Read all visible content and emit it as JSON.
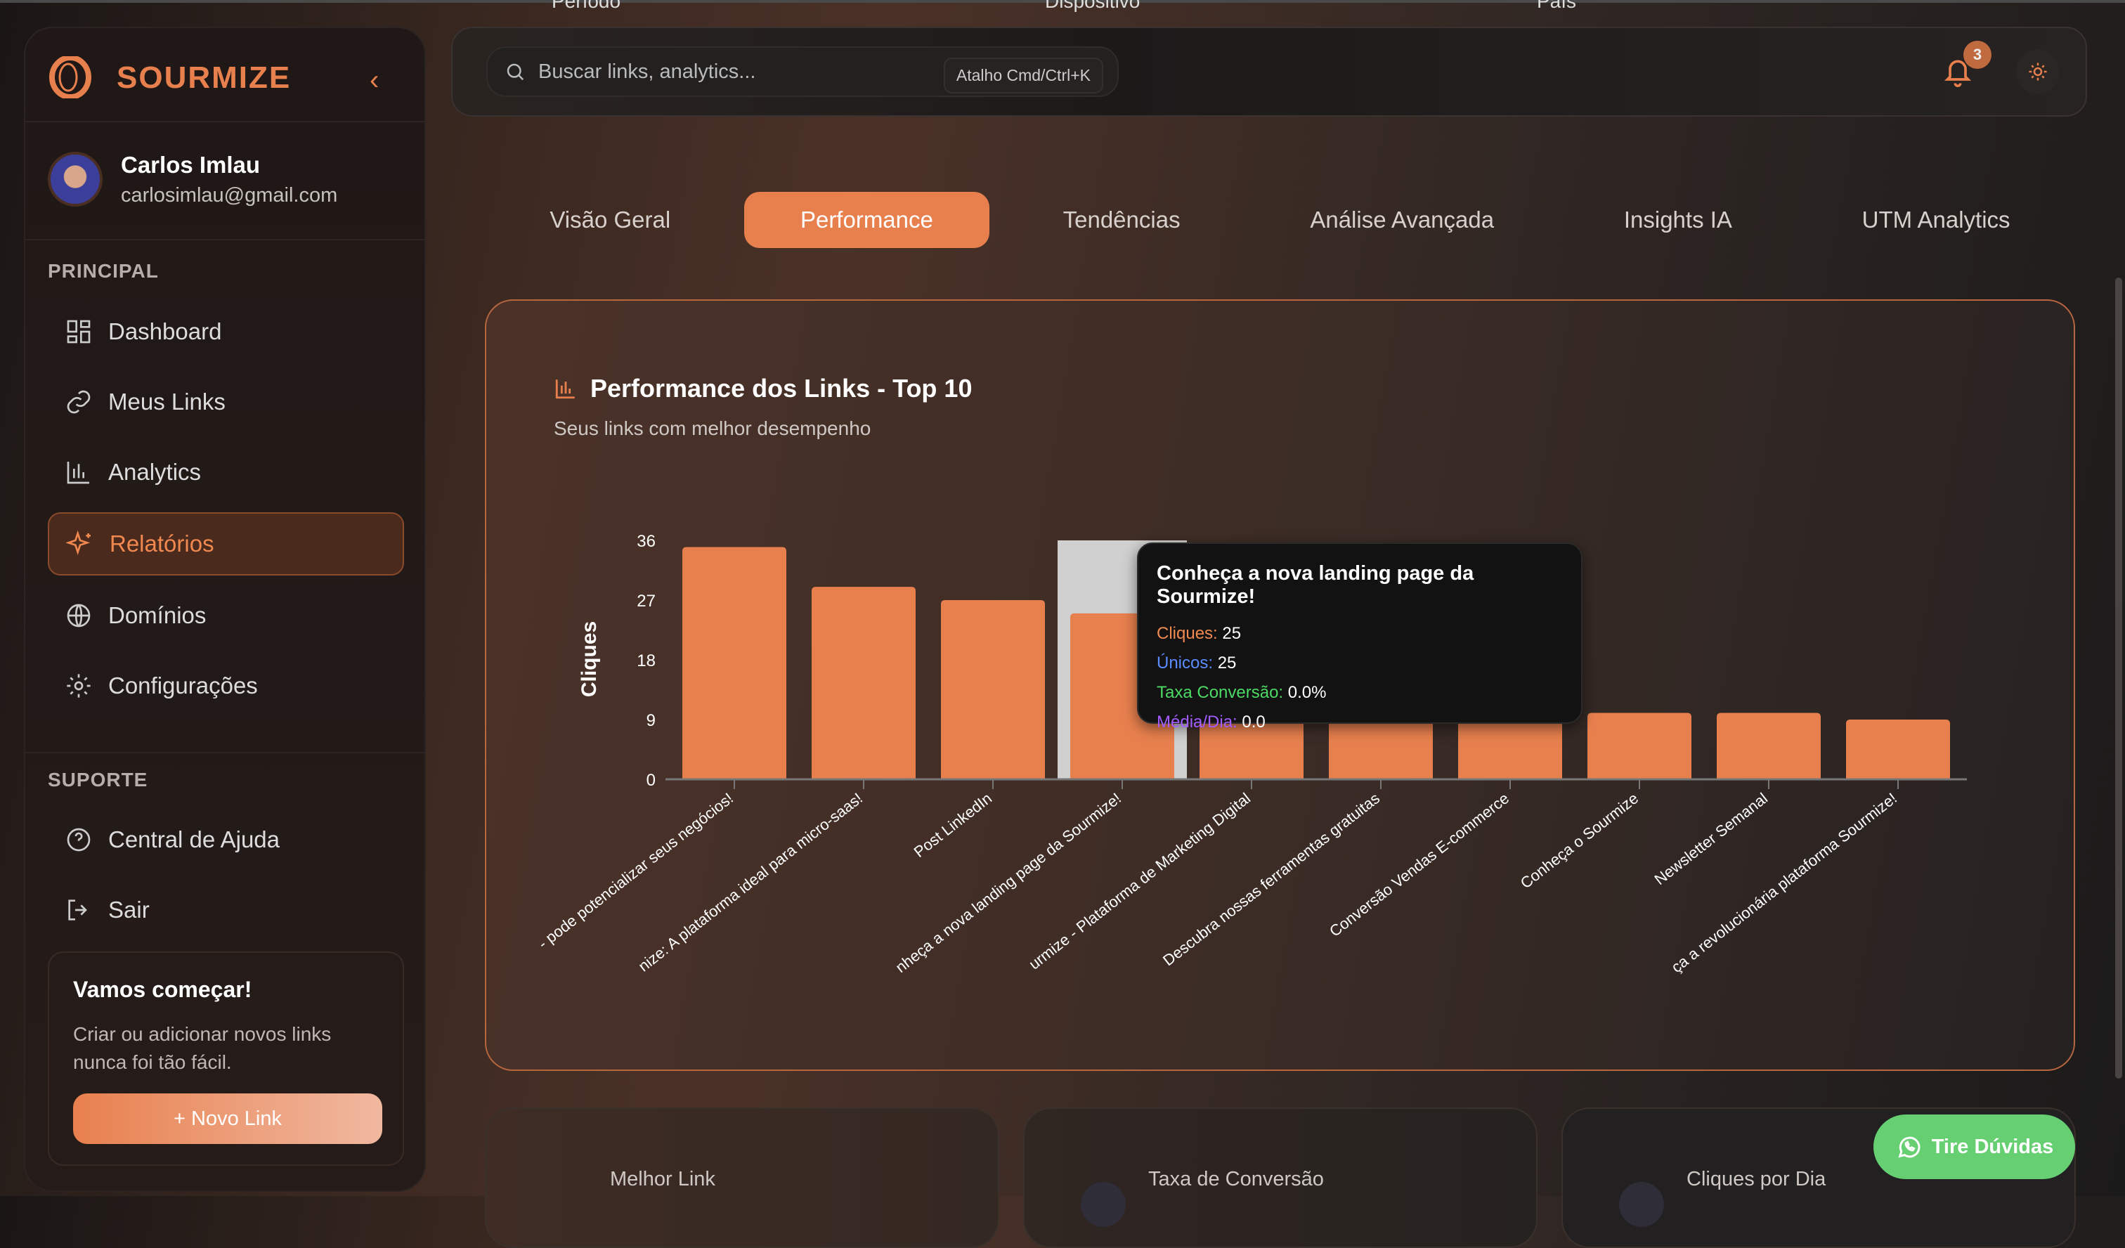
{
  "brand": {
    "name": "SOURMIZE",
    "accent": "#e8804e"
  },
  "user": {
    "name": "Carlos Imlau",
    "email": "carlosimlau@gmail.com"
  },
  "sidebar": {
    "principal_label": "PRINCIPAL",
    "items": [
      {
        "label": "Dashboard",
        "icon": "grid-icon"
      },
      {
        "label": "Meus Links",
        "icon": "link-icon"
      },
      {
        "label": "Analytics",
        "icon": "bar-chart-icon"
      },
      {
        "label": "Relatórios",
        "icon": "sparkles-icon",
        "active": true
      },
      {
        "label": "Domínios",
        "icon": "globe-icon"
      },
      {
        "label": "Configurações",
        "icon": "gear-icon"
      }
    ],
    "support_label": "SUPORTE",
    "support_items": [
      {
        "label": "Central de Ajuda",
        "icon": "help-circle-icon"
      },
      {
        "label": "Sair",
        "icon": "logout-icon"
      }
    ],
    "cta": {
      "title": "Vamos começar!",
      "text": "Criar ou adicionar novos links nunca foi tão fácil.",
      "button": "Novo Link"
    }
  },
  "filters": {
    "periodo": "Período",
    "dispositivo": "Dispositivo",
    "pais": "País"
  },
  "search": {
    "placeholder": "Buscar links, analytics...",
    "shortcut": "Atalho Cmd/Ctrl+K"
  },
  "notifications": {
    "count": "3"
  },
  "tabs": [
    "Visão Geral",
    "Performance",
    "Tendências",
    "Análise Avançada",
    "Insights IA",
    "UTM Analytics"
  ],
  "active_tab": "Performance",
  "card": {
    "title": "Performance dos Links - Top 10",
    "subtitle": "Seus links com melhor desempenho"
  },
  "chart_data": {
    "type": "bar",
    "ylabel": "Cliques",
    "ylim": [
      0,
      36
    ],
    "yticks": [
      "0",
      "9",
      "18",
      "27",
      "36"
    ],
    "categories": [
      "- pode potencializar seus negócios!",
      "nize: A plataforma ideal para micro-saas!",
      "Post LinkedIn",
      "nheça a nova landing page da Sourmize!",
      "urmize - Plataforma de Marketing Digital",
      "Descubra nossas ferramentas gratuitas",
      "Conversão Vendas E-commerce",
      "Conheça o Sourmize",
      "Newsletter Semanal",
      "ça a revolucionária plataforma Sourmize!"
    ],
    "values": [
      35,
      29,
      27,
      25,
      11,
      10,
      10,
      10,
      10,
      9
    ],
    "bar_color": "#e8804e",
    "highlighted_index": 3,
    "grid": false
  },
  "tooltip": {
    "title": "Conheça a nova landing page da Sourmize!",
    "rows": [
      {
        "label": "Cliques:",
        "value": "25",
        "color": "#f08a50"
      },
      {
        "label": "Únicos:",
        "value": "25",
        "color": "#5b8cff"
      },
      {
        "label": "Taxa Conversão:",
        "value": "0.0%",
        "color": "#4cd964"
      },
      {
        "label": "Média/Dia:",
        "value": "0.0",
        "color": "#a35cff"
      }
    ]
  },
  "stats": [
    "Melhor Link",
    "Taxa de Conversão",
    "Cliques por Dia"
  ],
  "whatsapp": {
    "label": "Tire Dúvidas",
    "color": "#66cf72"
  }
}
